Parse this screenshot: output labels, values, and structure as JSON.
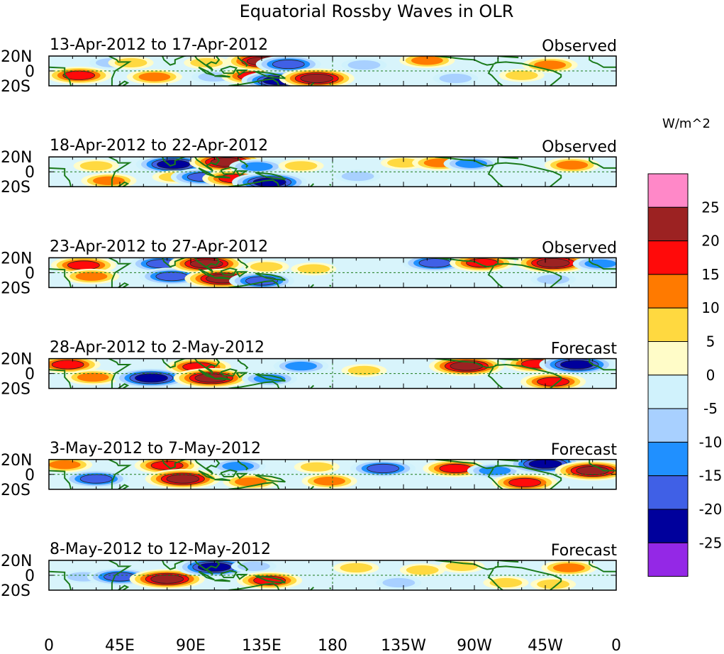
{
  "chart_data": {
    "type": "heatmap",
    "title": "Equatorial Rossby Waves in OLR",
    "colorbar": {
      "unit": "W/m^2",
      "tick_labels": [
        "25",
        "20",
        "15",
        "10",
        "5",
        "0",
        "-5",
        "-10",
        "-15",
        "-20",
        "-25"
      ],
      "colors": [
        "#ff88c8",
        "#9c2222",
        "#ff0a0a",
        "#ff7a00",
        "#ffd940",
        "#fffcc8",
        "#d0f2fc",
        "#a8d0ff",
        "#2090ff",
        "#4060e6",
        "#00009c",
        "#9428e6"
      ]
    },
    "x_axis": {
      "tick_labels": [
        "0",
        "45E",
        "90E",
        "135E",
        "180",
        "135W",
        "90W",
        "45W",
        "0"
      ],
      "range": [
        0,
        360
      ]
    },
    "y_axis": {
      "tick_labels": [
        "20N",
        "0",
        "20S"
      ],
      "range": [
        -20,
        20
      ]
    },
    "panels": [
      {
        "period": "13-Apr-2012 to 17-Apr-2012",
        "status": "Observed",
        "anomalies": [
          {
            "lon": 19,
            "lat": -6,
            "value": 20
          },
          {
            "lon": 40,
            "lat": 11,
            "value": -10
          },
          {
            "lon": 52,
            "lat": 11,
            "value": 10
          },
          {
            "lon": 67,
            "lat": -8,
            "value": 15
          },
          {
            "lon": 100,
            "lat": 11,
            "value": 10
          },
          {
            "lon": 105,
            "lat": -8,
            "value": -10
          },
          {
            "lon": 130,
            "lat": -7,
            "value": 20
          },
          {
            "lon": 136,
            "lat": 13,
            "value": 25
          },
          {
            "lon": 152,
            "lat": 9,
            "value": -20
          },
          {
            "lon": 146,
            "lat": -13,
            "value": -25
          },
          {
            "lon": 170,
            "lat": -10,
            "value": 25
          },
          {
            "lon": 200,
            "lat": 8,
            "value": -10
          },
          {
            "lon": 240,
            "lat": 14,
            "value": 15
          },
          {
            "lon": 258,
            "lat": -10,
            "value": -10
          },
          {
            "lon": 300,
            "lat": -6,
            "value": 10
          },
          {
            "lon": 318,
            "lat": 8,
            "value": 15
          }
        ]
      },
      {
        "period": "18-Apr-2012 to 22-Apr-2012",
        "status": "Observed",
        "anomalies": [
          {
            "lon": 30,
            "lat": 8,
            "value": 10
          },
          {
            "lon": 38,
            "lat": -12,
            "value": 15
          },
          {
            "lon": 79,
            "lat": 10,
            "value": -25
          },
          {
            "lon": 80,
            "lat": -7,
            "value": 10
          },
          {
            "lon": 98,
            "lat": -7,
            "value": -20
          },
          {
            "lon": 113,
            "lat": 13,
            "value": 25
          },
          {
            "lon": 118,
            "lat": -9,
            "value": 20
          },
          {
            "lon": 132,
            "lat": 7,
            "value": -15
          },
          {
            "lon": 140,
            "lat": -14,
            "value": -25
          },
          {
            "lon": 160,
            "lat": 8,
            "value": 10
          },
          {
            "lon": 196,
            "lat": -6,
            "value": -10
          },
          {
            "lon": 225,
            "lat": 12,
            "value": 10
          },
          {
            "lon": 248,
            "lat": 12,
            "value": 15
          },
          {
            "lon": 268,
            "lat": 11,
            "value": -15
          },
          {
            "lon": 332,
            "lat": 9,
            "value": 15
          }
        ]
      },
      {
        "period": "23-Apr-2012 to 27-Apr-2012",
        "status": "Observed",
        "anomalies": [
          {
            "lon": 22,
            "lat": 10,
            "value": 20
          },
          {
            "lon": 27,
            "lat": -5,
            "value": 15
          },
          {
            "lon": 72,
            "lat": 12,
            "value": -20
          },
          {
            "lon": 78,
            "lat": -5,
            "value": -20
          },
          {
            "lon": 100,
            "lat": 12,
            "value": 25
          },
          {
            "lon": 110,
            "lat": -8,
            "value": 25
          },
          {
            "lon": 135,
            "lat": -11,
            "value": -20
          },
          {
            "lon": 138,
            "lat": 8,
            "value": 10
          },
          {
            "lon": 168,
            "lat": 5,
            "value": 10
          },
          {
            "lon": 245,
            "lat": 13,
            "value": -20
          },
          {
            "lon": 275,
            "lat": 13,
            "value": 20
          },
          {
            "lon": 320,
            "lat": 13,
            "value": 25
          },
          {
            "lon": 350,
            "lat": 12,
            "value": -15
          },
          {
            "lon": 320,
            "lat": -9,
            "value": -10
          }
        ]
      },
      {
        "period": "28-Apr-2012 to 2-May-2012",
        "status": "Forecast",
        "anomalies": [
          {
            "lon": 12,
            "lat": 12,
            "value": 20
          },
          {
            "lon": 28,
            "lat": -5,
            "value": 15
          },
          {
            "lon": 65,
            "lat": -6,
            "value": -25
          },
          {
            "lon": 95,
            "lat": 9,
            "value": 20
          },
          {
            "lon": 103,
            "lat": -6,
            "value": 25
          },
          {
            "lon": 140,
            "lat": -7,
            "value": -15
          },
          {
            "lon": 160,
            "lat": 10,
            "value": -15
          },
          {
            "lon": 200,
            "lat": 4,
            "value": 10
          },
          {
            "lon": 265,
            "lat": 10,
            "value": 25
          },
          {
            "lon": 310,
            "lat": 13,
            "value": 20
          },
          {
            "lon": 335,
            "lat": 12,
            "value": -25
          },
          {
            "lon": 320,
            "lat": -11,
            "value": 20
          }
        ]
      },
      {
        "period": "3-May-2012 to 7-May-2012",
        "status": "Forecast",
        "anomalies": [
          {
            "lon": 10,
            "lat": 13,
            "value": 15
          },
          {
            "lon": 30,
            "lat": -6,
            "value": -20
          },
          {
            "lon": 75,
            "lat": 12,
            "value": 20
          },
          {
            "lon": 85,
            "lat": -6,
            "value": 25
          },
          {
            "lon": 120,
            "lat": 11,
            "value": -15
          },
          {
            "lon": 128,
            "lat": -10,
            "value": 15
          },
          {
            "lon": 170,
            "lat": 10,
            "value": 10
          },
          {
            "lon": 178,
            "lat": -9,
            "value": 15
          },
          {
            "lon": 212,
            "lat": 8,
            "value": -20
          },
          {
            "lon": 258,
            "lat": 8,
            "value": 20
          },
          {
            "lon": 283,
            "lat": 5,
            "value": -15
          },
          {
            "lon": 315,
            "lat": 14,
            "value": -25
          },
          {
            "lon": 302,
            "lat": -11,
            "value": 20
          },
          {
            "lon": 345,
            "lat": 5,
            "value": 25
          }
        ]
      },
      {
        "period": "8-May-2012 to 12-May-2012",
        "status": "Forecast",
        "anomalies": [
          {
            "lon": 22,
            "lat": -2,
            "value": -10
          },
          {
            "lon": 45,
            "lat": -2,
            "value": -20
          },
          {
            "lon": 75,
            "lat": -5,
            "value": 25
          },
          {
            "lon": 105,
            "lat": 11,
            "value": -25
          },
          {
            "lon": 130,
            "lat": 12,
            "value": -10
          },
          {
            "lon": 140,
            "lat": -7,
            "value": 20
          },
          {
            "lon": 195,
            "lat": 10,
            "value": 10
          },
          {
            "lon": 237,
            "lat": 7,
            "value": 10
          },
          {
            "lon": 222,
            "lat": -10,
            "value": -10
          },
          {
            "lon": 262,
            "lat": 12,
            "value": 10
          },
          {
            "lon": 290,
            "lat": -10,
            "value": 10
          },
          {
            "lon": 320,
            "lat": -12,
            "value": 10
          },
          {
            "lon": 330,
            "lat": 10,
            "value": 15
          }
        ]
      }
    ]
  }
}
